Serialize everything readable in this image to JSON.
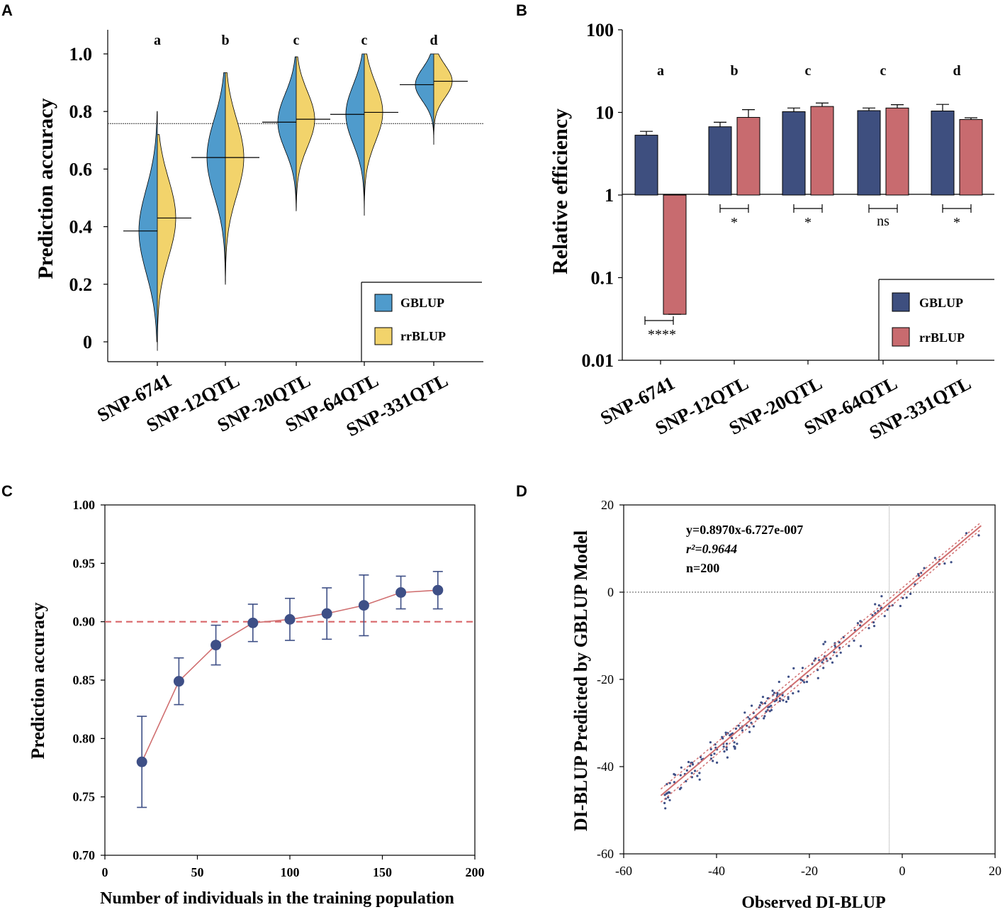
{
  "colors": {
    "gblup_violin": "#4f9bcc",
    "rrblup_violin": "#f2d36b",
    "gblup_bar": "#3e4f7f",
    "rrblup_bar": "#c86b6f",
    "line": "#d06f70",
    "point": "#3e4f86",
    "dashed": "#d9676a"
  },
  "chart_data": [
    {
      "panel": "A",
      "type": "violin",
      "ylabel": "Prediction accuracy",
      "ylim": [
        -0.03,
        1.08
      ],
      "yticks": [
        0,
        0.2,
        0.4,
        0.6,
        0.8,
        1.0
      ],
      "ytick_labels": [
        "0",
        "0.2",
        "0.4",
        "0.6",
        "0.8",
        "1.0"
      ],
      "categories": [
        "SNP-6741",
        "SNP-12QTL",
        "SNP-20QTL",
        "SNP-64QTL",
        "SNP-331QTL"
      ],
      "letters": [
        "a",
        "b",
        "c",
        "c",
        "d"
      ],
      "reference_line": 0.758,
      "series": [
        {
          "name": "GBLUP",
          "means": [
            0.385,
            0.64,
            0.763,
            0.79,
            0.893
          ],
          "ranges": [
            [
              0.0,
              0.8
            ],
            [
              0.2,
              0.935
            ],
            [
              0.455,
              0.99
            ],
            [
              0.44,
              1.0
            ],
            [
              0.685,
              1.0
            ]
          ]
        },
        {
          "name": "rrBLUP",
          "means": [
            0.43,
            0.64,
            0.773,
            0.797,
            0.905
          ],
          "ranges": [
            [
              -0.03,
              0.72
            ],
            [
              0.2,
              0.935
            ],
            [
              0.46,
              0.99
            ],
            [
              0.44,
              1.0
            ],
            [
              0.685,
              1.0
            ]
          ]
        }
      ],
      "legend": [
        "GBLUP",
        "rrBLUP"
      ]
    },
    {
      "panel": "B",
      "type": "bar",
      "scale": "log",
      "ylabel": "Relative efficiency",
      "ylim": [
        0.01,
        100
      ],
      "ytick_labels": [
        "0.01",
        "0.1",
        "1",
        "10",
        "100"
      ],
      "categories": [
        "SNP-6741",
        "SNP-12QTL",
        "SNP-20QTL",
        "SNP-64QTL",
        "SNP-331QTL"
      ],
      "letters": [
        "a",
        "b",
        "c",
        "c",
        "d"
      ],
      "series": [
        {
          "name": "GBLUP",
          "values": [
            5.3,
            6.7,
            10.2,
            10.5,
            10.4
          ],
          "errors": [
            5.9,
            7.6,
            11.3,
            11.3,
            12.5
          ]
        },
        {
          "name": "rrBLUP",
          "values": [
            0.036,
            8.7,
            11.8,
            11.3,
            8.2
          ],
          "errors": [
            0.036,
            10.8,
            13.0,
            12.4,
            8.6
          ]
        }
      ],
      "significance": [
        "****",
        "*",
        "*",
        "ns",
        "*"
      ],
      "legend": [
        "GBLUP",
        "rrBLUP"
      ]
    },
    {
      "panel": "C",
      "type": "line",
      "xlabel": "Number of individuals in the training population",
      "ylabel": "Prediction accuracy",
      "xlim": [
        0,
        200
      ],
      "ylim": [
        0.7,
        1.0
      ],
      "xticks": [
        "0",
        "50",
        "100",
        "150",
        "200"
      ],
      "yticks": [
        "0.70",
        "0.75",
        "0.80",
        "0.85",
        "0.90",
        "0.95",
        "1.00"
      ],
      "x": [
        20,
        40,
        60,
        80,
        100,
        120,
        140,
        160,
        180
      ],
      "y": [
        0.78,
        0.849,
        0.88,
        0.899,
        0.902,
        0.907,
        0.914,
        0.925,
        0.927
      ],
      "err": [
        0.039,
        0.02,
        0.017,
        0.016,
        0.018,
        0.022,
        0.026,
        0.014,
        0.016
      ],
      "reference_line": 0.9
    },
    {
      "panel": "D",
      "type": "scatter",
      "xlabel": "Observed DI-BLUP",
      "ylabel": "DI-BLUP Predicted by GBLUP Model",
      "xlim": [
        -60,
        20
      ],
      "ylim": [
        -60,
        20
      ],
      "xticks": [
        "-60",
        "-40",
        "-20",
        "0",
        "20"
      ],
      "yticks": [
        "-60",
        "-40",
        "-20",
        "0",
        "20"
      ],
      "fit": {
        "slope": 0.897,
        "intercept": 0.0
      },
      "x_range": [
        -52,
        17
      ],
      "annotations": [
        "y=0.8970x-6.727e-007",
        "r²=0.9644",
        "n=200"
      ]
    }
  ],
  "panel_labels": [
    "A",
    "B",
    "C",
    "D"
  ]
}
